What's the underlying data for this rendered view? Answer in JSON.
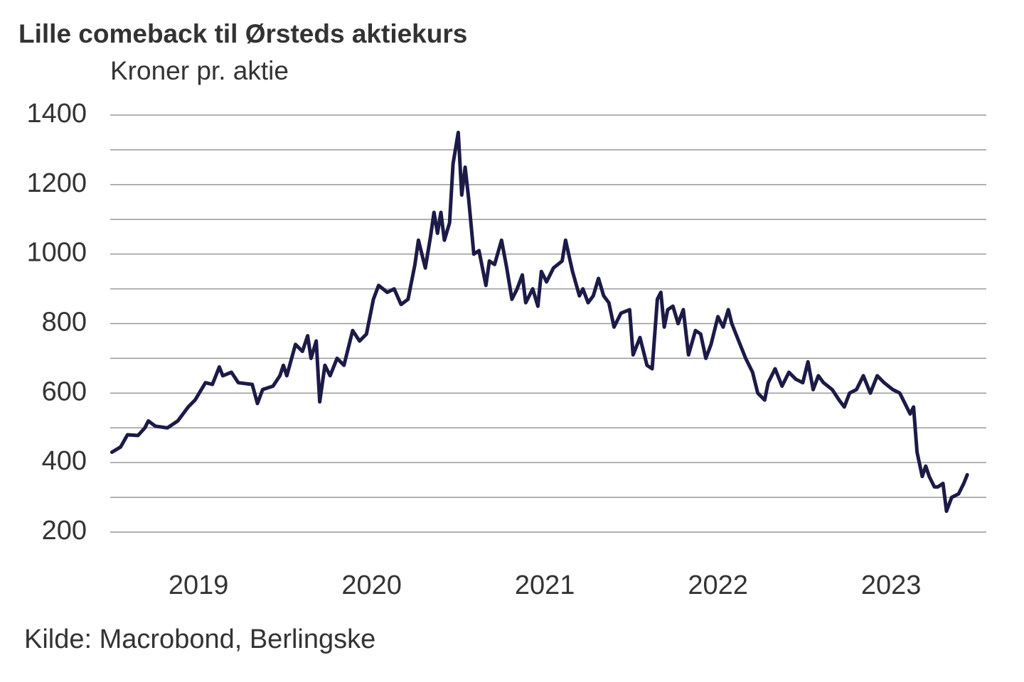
{
  "chart_data": {
    "type": "line",
    "title": "Lille comeback til Ørsteds aktiekurs",
    "subtitle": "Kroner pr. aktie",
    "source": "Kilde: Macrobond, Berlingske",
    "x": [
      2019.0,
      2019.05,
      2019.09,
      2019.15,
      2019.19,
      2019.21,
      2019.25,
      2019.32,
      2019.38,
      2019.44,
      2019.48,
      2019.54,
      2019.58,
      2019.62,
      2019.64,
      2019.69,
      2019.73,
      2019.81,
      2019.84,
      2019.87,
      2019.93,
      2019.97,
      2019.99,
      2020.01,
      2020.06,
      2020.1,
      2020.13,
      2020.15,
      2020.18,
      2020.2,
      2020.23,
      2020.26,
      2020.3,
      2020.34,
      2020.39,
      2020.43,
      2020.47,
      2020.51,
      2020.54,
      2020.59,
      2020.63,
      2020.67,
      2020.71,
      2020.75,
      2020.77,
      2020.81,
      2020.84,
      2020.86,
      2020.88,
      2020.9,
      2020.92,
      2020.95,
      2020.97,
      2021.0,
      2021.02,
      2021.04,
      2021.06,
      2021.09,
      2021.12,
      2021.16,
      2021.18,
      2021.21,
      2021.25,
      2021.28,
      2021.31,
      2021.34,
      2021.37,
      2021.39,
      2021.43,
      2021.46,
      2021.48,
      2021.51,
      2021.55,
      2021.6,
      2021.62,
      2021.66,
      2021.7,
      2021.72,
      2021.75,
      2021.78,
      2021.81,
      2021.84,
      2021.87,
      2021.9,
      2021.94,
      2021.99,
      2022.01,
      2022.05,
      2022.09,
      2022.12,
      2022.15,
      2022.17,
      2022.19,
      2022.21,
      2022.24,
      2022.27,
      2022.3,
      2022.33,
      2022.37,
      2022.4,
      2022.43,
      2022.46,
      2022.5,
      2022.53,
      2022.56,
      2022.58,
      2022.62,
      2022.66,
      2022.7,
      2022.73,
      2022.77,
      2022.79,
      2022.83,
      2022.87,
      2022.91,
      2022.95,
      2022.99,
      2023.02,
      2023.05,
      2023.08,
      2023.11,
      2023.16,
      2023.2,
      2023.23,
      2023.26,
      2023.3,
      2023.34,
      2023.38,
      2023.42,
      2023.46,
      2023.51,
      2023.55,
      2023.58,
      2023.61,
      2023.63,
      2023.65,
      2023.68,
      2023.7,
      2023.72,
      2023.75,
      2023.77,
      2023.8,
      2023.82,
      2023.85,
      2023.89,
      2023.92,
      2023.94
    ],
    "series": [
      {
        "name": "Ørsted",
        "color": "#1c1a47",
        "values": [
          430,
          445,
          480,
          478,
          500,
          520,
          505,
          500,
          520,
          560,
          580,
          630,
          625,
          675,
          650,
          660,
          630,
          625,
          570,
          610,
          620,
          650,
          680,
          650,
          740,
          720,
          765,
          700,
          750,
          575,
          680,
          650,
          700,
          680,
          780,
          750,
          770,
          870,
          910,
          890,
          900,
          855,
          870,
          970,
          1040,
          960,
          1050,
          1120,
          1060,
          1120,
          1040,
          1090,
          1260,
          1350,
          1170,
          1250,
          1160,
          1000,
          1010,
          910,
          980,
          970,
          1040,
          960,
          870,
          900,
          940,
          860,
          900,
          850,
          950,
          920,
          960,
          980,
          1040,
          950,
          880,
          900,
          860,
          880,
          930,
          880,
          860,
          790,
          830,
          840,
          710,
          760,
          680,
          670,
          870,
          890,
          790,
          840,
          850,
          800,
          840,
          710,
          780,
          770,
          700,
          740,
          820,
          790,
          840,
          800,
          750,
          700,
          660,
          600,
          580,
          630,
          670,
          620,
          660,
          640,
          630,
          690,
          610,
          650,
          630,
          610,
          580,
          560,
          600,
          610,
          650,
          600,
          650,
          630,
          610,
          600,
          570,
          540,
          560,
          430,
          360,
          390,
          360,
          330,
          330,
          340,
          260,
          300,
          310,
          340,
          365
        ]
      }
    ],
    "xlim": [
      2018.99,
      2024.05
    ],
    "xticks": [
      {
        "value": 2019.5,
        "label": "2019"
      },
      {
        "value": 2020.5,
        "label": "2020"
      },
      {
        "value": 2021.5,
        "label": "2021"
      },
      {
        "value": 2022.5,
        "label": "2022"
      },
      {
        "value": 2023.5,
        "label": "2023"
      }
    ],
    "ylim": [
      200,
      1400
    ],
    "yticks": [
      200,
      400,
      600,
      800,
      1000,
      1200,
      1400
    ],
    "y_minor_ticks": [
      300,
      500,
      700,
      900,
      1100,
      1300
    ],
    "grid": true
  }
}
